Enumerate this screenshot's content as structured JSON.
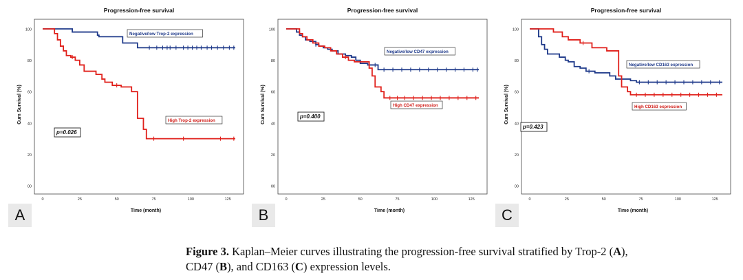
{
  "chart_data": [
    {
      "type": "line",
      "panel_label": "A",
      "title": "Progression-free survival",
      "xlabel": "Time (month)",
      "ylabel": "Cum Survival (%)",
      "xlim": [
        0,
        130
      ],
      "ylim": [
        0,
        100
      ],
      "xticks": [
        "0",
        "25",
        "50",
        "75",
        "100",
        "125"
      ],
      "yticks": [
        "00",
        "20",
        "40",
        "60",
        "80",
        "100"
      ],
      "pvalue": "p=0.026",
      "series": [
        {
          "name": "Negative/low Trop-2 expression",
          "color": "#1f3a8a",
          "x": [
            0,
            19,
            20,
            30,
            37,
            38,
            52,
            54,
            62,
            64,
            130
          ],
          "y": [
            100,
            100,
            98,
            98,
            96,
            95,
            95,
            91,
            91,
            88,
            88
          ],
          "censor_x": [
            72,
            77,
            81,
            84,
            86,
            90,
            95,
            98,
            101,
            104,
            107,
            111,
            114,
            118,
            122,
            126,
            129
          ]
        },
        {
          "name": "High Trop-2 expression",
          "color": "#e0201b",
          "x": [
            0,
            6,
            8,
            10,
            12,
            14,
            16,
            19,
            22,
            25,
            28,
            33,
            36,
            40,
            42,
            44,
            47,
            50,
            53,
            57,
            60,
            64,
            65,
            68,
            70,
            130
          ],
          "y": [
            100,
            100,
            97,
            93,
            89,
            86,
            83,
            82,
            80,
            77,
            73,
            73,
            71,
            68,
            66,
            66,
            64,
            64,
            63,
            63,
            60,
            43,
            43,
            36,
            30,
            30
          ],
          "censor_x": [
            20,
            50,
            75,
            95,
            120,
            129
          ]
        }
      ]
    },
    {
      "type": "line",
      "panel_label": "B",
      "title": "Progression-free survival",
      "xlabel": "Time (month)",
      "ylabel": "Cum Survival (%)",
      "xlim": [
        0,
        130
      ],
      "ylim": [
        0,
        100
      ],
      "xticks": [
        "0",
        "25",
        "50",
        "75",
        "100",
        "125"
      ],
      "yticks": [
        "00",
        "20",
        "40",
        "60",
        "80",
        "100"
      ],
      "pvalue": "p=0.400",
      "series": [
        {
          "name": "Negative/low CD47 expression",
          "color": "#1f3a8a",
          "x": [
            0,
            5,
            7,
            9,
            11,
            13,
            16,
            20,
            22,
            25,
            28,
            31,
            35,
            40,
            44,
            47,
            50,
            55,
            58,
            62,
            130
          ],
          "y": [
            100,
            100,
            98,
            96,
            95,
            93,
            92,
            90,
            89,
            88,
            87,
            86,
            84,
            83,
            82,
            80,
            78,
            77,
            77,
            74,
            74
          ],
          "censor_x": [
            20,
            60,
            66,
            72,
            78,
            84,
            90,
            96,
            102,
            108,
            114,
            120,
            126,
            129
          ]
        },
        {
          "name": "High CD47 expression",
          "color": "#e0201b",
          "x": [
            0,
            7,
            9,
            11,
            14,
            18,
            22,
            26,
            30,
            34,
            38,
            42,
            46,
            52,
            56,
            58,
            60,
            64,
            66,
            130
          ],
          "y": [
            100,
            100,
            97,
            95,
            93,
            91,
            89,
            88,
            86,
            84,
            82,
            80,
            79,
            79,
            75,
            70,
            63,
            60,
            56,
            56
          ],
          "censor_x": [
            40,
            70,
            75,
            80,
            86,
            92,
            98,
            104,
            110,
            116,
            122,
            128
          ]
        }
      ]
    },
    {
      "type": "line",
      "panel_label": "C",
      "title": "Progression-free survival",
      "xlabel": "Time (month)",
      "ylabel": "Cum Survival (%)",
      "xlim": [
        0,
        130
      ],
      "ylim": [
        0,
        100
      ],
      "xticks": [
        "0",
        "25",
        "50",
        "75",
        "100",
        "125"
      ],
      "yticks": [
        "00",
        "20",
        "40",
        "60",
        "80",
        "100"
      ],
      "pvalue": "p=0.423",
      "series": [
        {
          "name": "Negative/low CD163 expression",
          "color": "#1f3a8a",
          "x": [
            0,
            4,
            6,
            8,
            10,
            12,
            15,
            20,
            24,
            26,
            30,
            34,
            38,
            44,
            50,
            54,
            58,
            64,
            68,
            72,
            130
          ],
          "y": [
            100,
            100,
            95,
            90,
            87,
            84,
            84,
            82,
            80,
            79,
            76,
            75,
            73,
            72,
            72,
            70,
            68,
            68,
            67,
            66,
            66
          ],
          "censor_x": [
            40,
            74,
            80,
            86,
            92,
            98,
            104,
            110,
            116,
            122,
            128
          ]
        },
        {
          "name": "High CD163 expression",
          "color": "#e0201b",
          "x": [
            0,
            14,
            16,
            22,
            26,
            32,
            34,
            40,
            42,
            48,
            52,
            58,
            60,
            62,
            66,
            68,
            130
          ],
          "y": [
            100,
            100,
            98,
            95,
            93,
            93,
            91,
            91,
            88,
            88,
            86,
            86,
            70,
            63,
            60,
            58,
            58
          ],
          "censor_x": [
            36,
            72,
            78,
            84,
            90,
            96,
            102,
            108,
            114,
            120,
            126
          ]
        }
      ]
    }
  ],
  "caption": {
    "figure_label": "Figure 3.",
    "text_1": " Kaplan–Meier curves illustrating the progression-free survival stratified by Trop-2 (",
    "A": "A",
    "text_2": "),",
    "text_3": "CD47 (",
    "B": "B",
    "text_4": "), and CD163 (",
    "C": "C",
    "text_5": ") expression levels."
  }
}
